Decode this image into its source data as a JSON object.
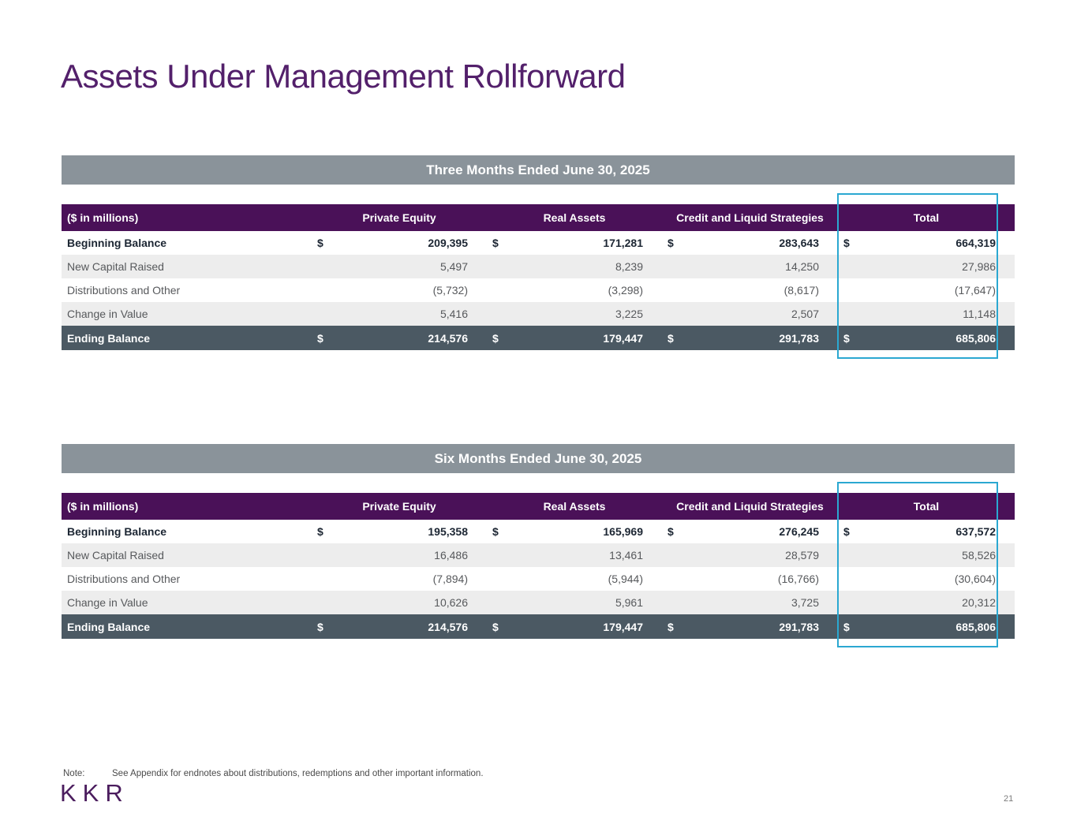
{
  "page": {
    "title": "Assets Under Management Rollforward",
    "note_label": "Note:",
    "note_text": "See Appendix for endnotes about distributions, redemptions and other important information.",
    "logo": "KKR",
    "page_number": "21"
  },
  "colors": {
    "brand_purple": "#4A1158",
    "title_purple": "#53206B",
    "banner_gray": "#8A939A",
    "ending_row_slate": "#4B5963",
    "stripe_gray": "#EDEDED",
    "highlight_blue": "#2BA8D1"
  },
  "table_columns": [
    "($ in millions)",
    "Private Equity",
    "Real Assets",
    "Credit and Liquid Strategies",
    "Total"
  ],
  "sections": [
    {
      "banner": "Three Months Ended June 30, 2025",
      "rows": [
        {
          "label": "Beginning Balance",
          "dollar": "$",
          "values": [
            "209,395",
            "171,281",
            "283,643",
            "664,319"
          ]
        },
        {
          "label": "New Capital Raised",
          "dollar": "",
          "values": [
            "5,497",
            "8,239",
            "14,250",
            "27,986"
          ]
        },
        {
          "label": "Distributions and Other",
          "dollar": "",
          "values": [
            "(5,732)",
            "(3,298)",
            "(8,617)",
            "(17,647)"
          ]
        },
        {
          "label": "Change in Value",
          "dollar": "",
          "values": [
            "5,416",
            "3,225",
            "2,507",
            "11,148"
          ]
        },
        {
          "label": "Ending Balance",
          "dollar": "$",
          "values": [
            "214,576",
            "179,447",
            "291,783",
            "685,806"
          ]
        }
      ]
    },
    {
      "banner": "Six Months Ended June 30, 2025",
      "rows": [
        {
          "label": "Beginning Balance",
          "dollar": "$",
          "values": [
            "195,358",
            "165,969",
            "276,245",
            "637,572"
          ]
        },
        {
          "label": "New Capital Raised",
          "dollar": "",
          "values": [
            "16,486",
            "13,461",
            "28,579",
            "58,526"
          ]
        },
        {
          "label": "Distributions and Other",
          "dollar": "",
          "values": [
            "(7,894)",
            "(5,944)",
            "(16,766)",
            "(30,604)"
          ]
        },
        {
          "label": "Change in Value",
          "dollar": "",
          "values": [
            "10,626",
            "5,961",
            "3,725",
            "20,312"
          ]
        },
        {
          "label": "Ending Balance",
          "dollar": "$",
          "values": [
            "214,576",
            "179,447",
            "291,783",
            "685,806"
          ]
        }
      ]
    }
  ]
}
